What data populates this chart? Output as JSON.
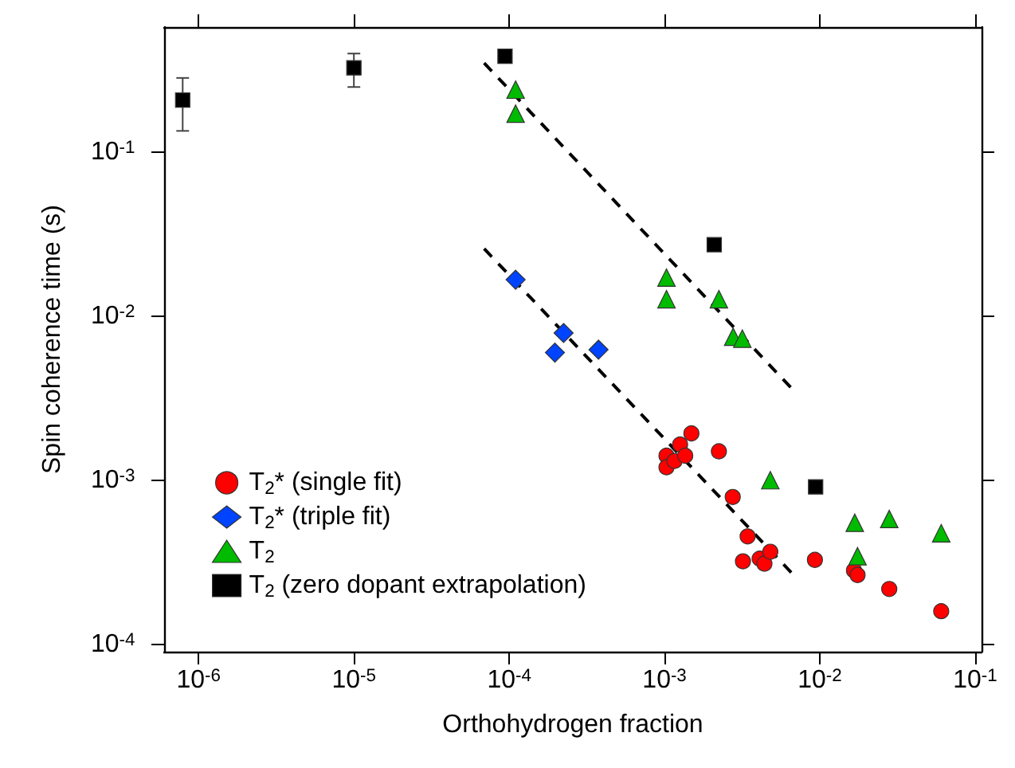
{
  "chart_data": {
    "type": "scatter",
    "xlabel": "Orthohydrogen fraction",
    "ylabel": "Spin coherence time (s)",
    "log": "xy",
    "grid": false,
    "legend": "bottom left",
    "xlim": [
      6e-07,
      0.11
    ],
    "ylim": [
      9e-05,
      0.58
    ],
    "xticks": [
      {
        "value": 1e-06,
        "label": "10$^{-6}$"
      },
      {
        "value": 1e-05,
        "label": "10$^{-5}$"
      },
      {
        "value": 0.0001,
        "label": "10$^{-4}$"
      },
      {
        "value": 0.001,
        "label": "10$^{-3}$"
      },
      {
        "value": 0.01,
        "label": "10$^{-2}$"
      },
      {
        "value": 0.1,
        "label": "10$^{-1}$"
      }
    ],
    "yticks": [
      {
        "value": 0.0001,
        "label": "10$^{-4}$"
      },
      {
        "value": 0.001,
        "label": "10$^{-3}$"
      },
      {
        "value": 0.01,
        "label": "10$^{-2}$"
      },
      {
        "value": 0.1,
        "label": "10$^{-1}$"
      }
    ],
    "series": [
      {
        "name": "T$_{2}$* (single fit)",
        "color": "#ff0000",
        "marker": "circle",
        "x": [
          0.00103,
          0.00103,
          0.00116,
          0.00126,
          0.00136,
          0.00149,
          0.00224,
          0.00275,
          0.00343,
          0.0032,
          0.0041,
          0.0044,
          0.0048,
          0.0093,
          0.0166,
          0.0175,
          0.028,
          0.0605
        ],
        "values": [
          0.00141,
          0.0012,
          0.00131,
          0.00165,
          0.00141,
          0.00193,
          0.0015,
          0.00079,
          0.000454,
          0.00032,
          0.000332,
          0.00031,
          0.000366,
          0.000327,
          0.000282,
          0.000264,
          0.000217,
          0.000159
        ]
      },
      {
        "name": "T$_{2}$* (triple fit)",
        "color": "#0044ff",
        "marker": "diamond",
        "x": [
          0.00011,
          0.000224,
          0.000197,
          0.000376
        ],
        "values": [
          0.0167,
          0.0079,
          0.006,
          0.00625
        ]
      },
      {
        "name": "T$_{2}$",
        "color": "#00bb00",
        "marker": "triangle",
        "x": [
          0.00011,
          0.00011,
          0.00103,
          0.00103,
          0.00224,
          0.00277,
          0.00317,
          0.0048,
          0.0168,
          0.028,
          0.0605,
          0.0175
        ],
        "values": [
          0.241,
          0.172,
          0.0172,
          0.0127,
          0.0127,
          0.0075,
          0.0073,
          0.001,
          0.00055,
          0.00058,
          0.000475,
          0.000344
        ]
      },
      {
        "name": "T$_{2}$ (zero dopant extrapolation)",
        "color": "#000000",
        "marker": "square",
        "x": [
          7.9e-07,
          1e-05,
          9.4e-05,
          0.00209,
          0.0094
        ],
        "values": [
          0.208,
          0.327,
          0.385,
          0.0273,
          0.00091
        ],
        "errors": [
          [
            0.135,
            0.284
          ],
          [
            0.25,
            0.4
          ],
          null,
          null,
          null
        ]
      },
      {
        "type": "line",
        "color": "#000000",
        "line_style": "dashed",
        "marker": "none",
        "x": [
          6.9e-05,
          0.00695
        ],
        "values": [
          0.35,
          0.00344
        ]
      },
      {
        "type": "line",
        "color": "#000000",
        "line_style": "dashed",
        "marker": "none",
        "x": [
          6.9e-05,
          0.00695
        ],
        "values": [
          0.0258,
          0.000258
        ]
      }
    ]
  }
}
